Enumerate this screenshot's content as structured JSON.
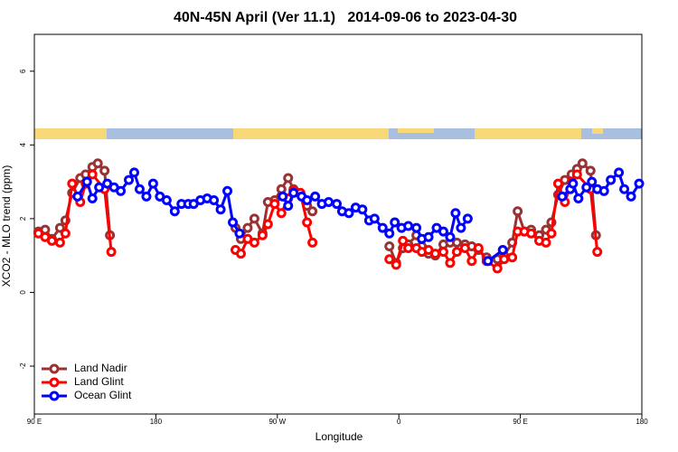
{
  "chart_data": {
    "type": "line",
    "title": "40N-45N April (Ver 11.1)   2014-09-06 to 2023-04-30",
    "xlabel": "Longitude",
    "ylabel": "XCO2 - MLO trend (ppm)",
    "xlim": [
      90,
      540
    ],
    "ylim": [
      -3.3,
      7
    ],
    "xticks": [
      {
        "value": 90,
        "label": "90 E"
      },
      180,
      {
        "value": 270,
        "label": "90 W"
      },
      {
        "value": 360,
        "label": "0"
      },
      {
        "value": 450,
        "label": "90 E"
      },
      {
        "value": 540,
        "label": "180"
      }
    ],
    "yticks": [
      -2,
      0,
      2,
      4,
      6
    ],
    "legend": "bottom-left",
    "series": [
      {
        "name": "Land Nadir",
        "color": "#993333",
        "x": [
          93,
          98,
          103,
          109,
          113,
          118,
          124,
          128,
          133,
          137,
          142,
          146,
          null,
          239,
          243,
          248,
          253,
          259,
          263,
          268,
          273,
          278,
          282,
          287,
          292,
          296,
          null,
          353,
          358,
          363,
          367,
          373,
          377,
          382,
          387,
          393,
          398,
          403,
          409,
          414,
          419,
          425,
          433,
          438,
          444,
          448,
          453,
          458,
          464,
          469,
          473,
          478,
          483,
          488,
          492,
          496,
          502,
          506
        ],
        "values": [
          1.65,
          1.7,
          1.45,
          1.75,
          1.95,
          2.7,
          3.1,
          3.2,
          3.4,
          3.5,
          3.3,
          1.55,
          null,
          1.75,
          1.45,
          1.75,
          2.0,
          1.6,
          2.45,
          2.5,
          2.8,
          3.1,
          2.8,
          2.7,
          2.35,
          2.2,
          null,
          1.25,
          0.8,
          1.2,
          1.3,
          1.55,
          1.25,
          1.05,
          1.0,
          1.3,
          1.35,
          1.35,
          1.3,
          1.25,
          1.15,
          0.95,
          0.9,
          1.0,
          1.35,
          2.2,
          1.65,
          1.7,
          1.55,
          1.7,
          1.9,
          2.65,
          3.05,
          3.2,
          3.35,
          3.5,
          3.3,
          1.55
        ]
      },
      {
        "name": "Land Glint",
        "color": "#ff0000",
        "x": [
          93,
          98,
          103,
          109,
          113,
          118,
          124,
          128,
          133,
          142,
          147,
          null,
          239,
          243,
          248,
          253,
          259,
          263,
          268,
          273,
          278,
          282,
          287,
          292,
          296,
          null,
          353,
          358,
          363,
          367,
          373,
          377,
          382,
          387,
          393,
          398,
          403,
          409,
          414,
          419,
          425,
          433,
          438,
          444,
          448,
          453,
          458,
          464,
          469,
          473,
          478,
          483,
          488,
          492,
          502,
          507
        ],
        "values": [
          1.6,
          1.5,
          1.4,
          1.35,
          1.6,
          2.95,
          2.45,
          2.95,
          3.2,
          2.8,
          1.1,
          null,
          1.15,
          1.05,
          1.45,
          1.35,
          1.55,
          1.85,
          2.4,
          2.15,
          2.55,
          2.75,
          2.7,
          1.9,
          1.35,
          null,
          0.9,
          0.75,
          1.4,
          1.2,
          1.2,
          1.1,
          1.15,
          1.05,
          1.1,
          0.8,
          1.1,
          1.2,
          0.85,
          1.2,
          0.85,
          0.65,
          0.9,
          0.95,
          1.65,
          1.65,
          1.6,
          1.4,
          1.35,
          1.6,
          2.95,
          2.45,
          3.0,
          3.2,
          2.8,
          1.1
        ]
      },
      {
        "name": "Ocean Glint",
        "color": "#0000ff",
        "x": [
          122,
          129,
          133,
          138,
          144,
          149,
          154,
          160,
          164,
          168,
          173,
          178,
          183,
          188,
          194,
          199,
          204,
          208,
          213,
          218,
          223,
          228,
          233,
          237,
          242,
          null,
          274,
          278,
          282,
          288,
          292,
          298,
          303,
          308,
          314,
          318,
          323,
          328,
          333,
          338,
          342,
          348,
          353,
          357,
          362,
          367,
          373,
          377,
          382,
          388,
          393,
          398,
          402,
          406,
          411,
          null,
          426,
          437,
          null,
          481,
          487,
          489,
          493,
          499,
          503,
          507,
          512,
          517,
          523,
          527,
          532,
          538
        ],
        "values": [
          2.6,
          3.0,
          2.55,
          2.85,
          2.95,
          2.85,
          2.75,
          3.05,
          3.25,
          2.8,
          2.6,
          2.95,
          2.6,
          2.5,
          2.2,
          2.4,
          2.4,
          2.4,
          2.5,
          2.55,
          2.5,
          2.25,
          2.75,
          1.9,
          1.6,
          null,
          2.6,
          2.35,
          2.7,
          2.6,
          2.5,
          2.6,
          2.4,
          2.45,
          2.4,
          2.2,
          2.15,
          2.3,
          2.25,
          1.95,
          2.0,
          1.75,
          1.6,
          1.9,
          1.75,
          1.8,
          1.75,
          1.45,
          1.5,
          1.75,
          1.65,
          1.5,
          2.15,
          1.75,
          2.0,
          null,
          0.85,
          1.15,
          null,
          2.6,
          2.8,
          2.95,
          2.55,
          2.85,
          3.0,
          2.8,
          2.75,
          3.05,
          3.25,
          2.8,
          2.6,
          2.95
        ]
      }
    ]
  }
}
